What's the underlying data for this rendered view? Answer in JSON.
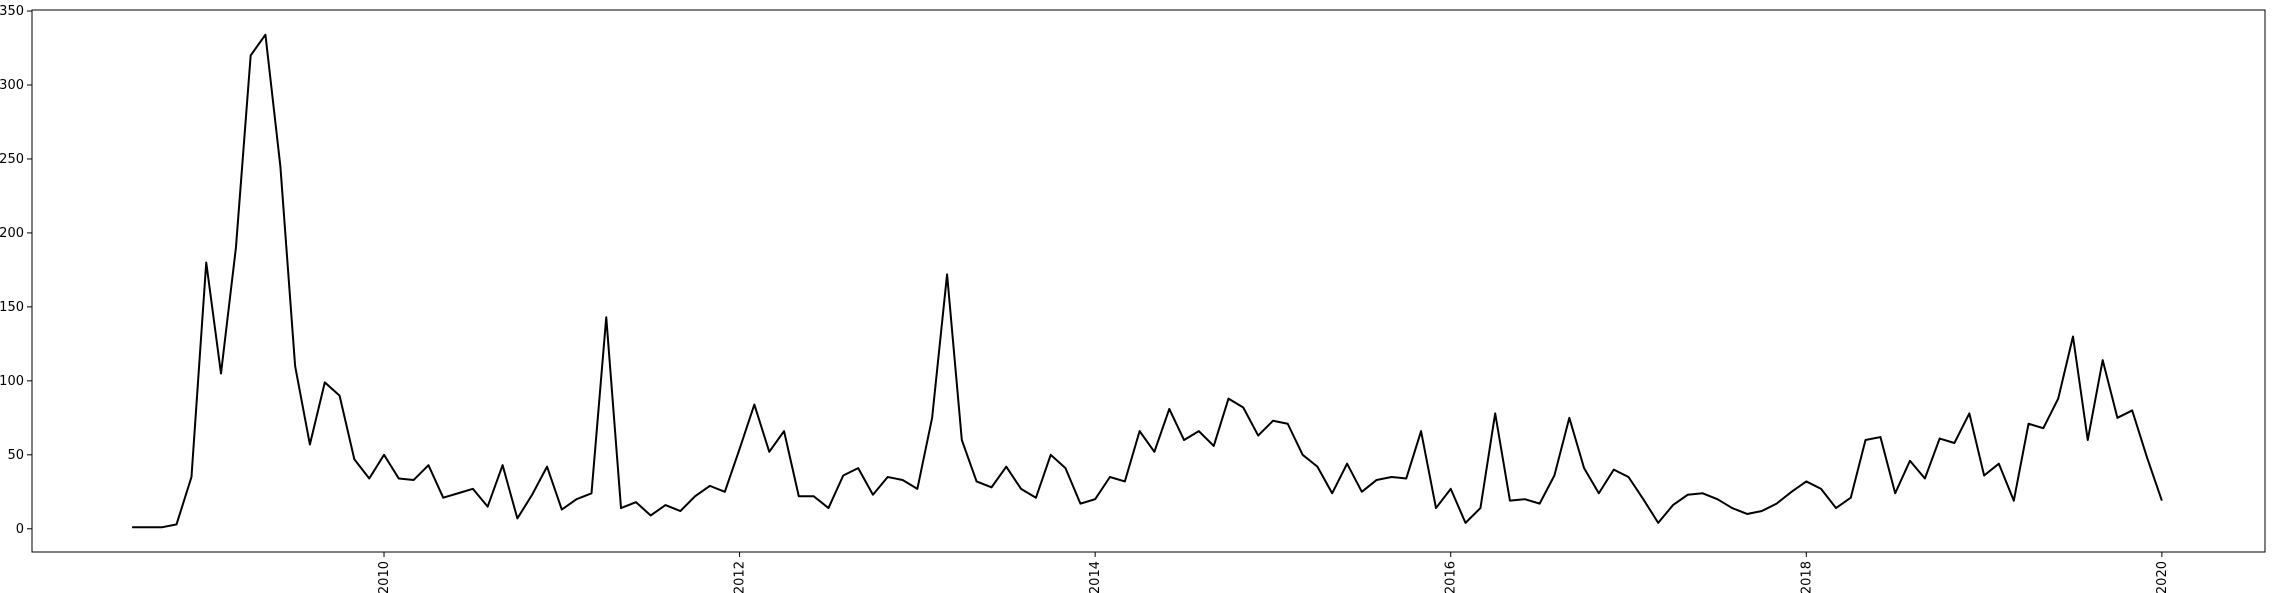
{
  "chart_data": {
    "type": "line",
    "color": "#000000",
    "x": [
      2008.583,
      2008.667,
      2008.75,
      2008.833,
      2008.917,
      2009,
      2009.083,
      2009.167,
      2009.25,
      2009.333,
      2009.417,
      2009.5,
      2009.583,
      2009.667,
      2009.75,
      2009.833,
      2009.917,
      2010,
      2010.083,
      2010.167,
      2010.25,
      2010.333,
      2010.417,
      2010.5,
      2010.583,
      2010.667,
      2010.75,
      2010.833,
      2010.917,
      2011,
      2011.083,
      2011.167,
      2011.25,
      2011.333,
      2011.417,
      2011.5,
      2011.583,
      2011.667,
      2011.75,
      2011.833,
      2011.917,
      2012,
      2012.083,
      2012.167,
      2012.25,
      2012.333,
      2012.417,
      2012.5,
      2012.583,
      2012.667,
      2012.75,
      2012.833,
      2012.917,
      2013,
      2013.083,
      2013.167,
      2013.25,
      2013.333,
      2013.417,
      2013.5,
      2013.583,
      2013.667,
      2013.75,
      2013.833,
      2013.917,
      2014,
      2014.083,
      2014.167,
      2014.25,
      2014.333,
      2014.417,
      2014.5,
      2014.583,
      2014.667,
      2014.75,
      2014.833,
      2014.917,
      2015,
      2015.083,
      2015.167,
      2015.25,
      2015.333,
      2015.417,
      2015.5,
      2015.583,
      2015.667,
      2015.75,
      2015.833,
      2015.917,
      2016,
      2016.083,
      2016.167,
      2016.25,
      2016.333,
      2016.417,
      2016.5,
      2016.583,
      2016.667,
      2016.75,
      2016.833,
      2016.917,
      2017,
      2017.083,
      2017.167,
      2017.25,
      2017.333,
      2017.417,
      2017.5,
      2017.583,
      2017.667,
      2017.75,
      2017.833,
      2017.917,
      2018,
      2018.083,
      2018.167,
      2018.25,
      2018.333,
      2018.417,
      2018.5,
      2018.583,
      2018.667,
      2018.75,
      2018.833,
      2018.917,
      2019,
      2019.083,
      2019.167,
      2019.25,
      2019.333,
      2019.417,
      2019.5,
      2019.583,
      2019.667,
      2019.75,
      2019.833,
      2019.917,
      2020
    ],
    "values": [
      1,
      1,
      1,
      3,
      35,
      180,
      105,
      190,
      320,
      334,
      245,
      110,
      57,
      99,
      90,
      47,
      34,
      50,
      34,
      33,
      43,
      21,
      24,
      27,
      15,
      43,
      7,
      23,
      42,
      13,
      20,
      24,
      143,
      14,
      18,
      9,
      16,
      12,
      22,
      29,
      25,
      54,
      84,
      52,
      66,
      22,
      22,
      14,
      36,
      41,
      23,
      35,
      33,
      27,
      75,
      172,
      60,
      32,
      28,
      42,
      27,
      21,
      50,
      41,
      17,
      20,
      35,
      32,
      66,
      52,
      81,
      60,
      66,
      56,
      88,
      82,
      63,
      73,
      71,
      50,
      42,
      24,
      44,
      25,
      33,
      35,
      34,
      66,
      14,
      27,
      4,
      14,
      78,
      19,
      20,
      17,
      36,
      75,
      41,
      24,
      40,
      35,
      20,
      4,
      16,
      23,
      24,
      20,
      14,
      10,
      12,
      17,
      25,
      32,
      27,
      14,
      21,
      60,
      62,
      24,
      46,
      34,
      61,
      58,
      78,
      36,
      44,
      19,
      71,
      68,
      88,
      130,
      60,
      114,
      75,
      80,
      48,
      19
    ],
    "xlim": [
      2008.02,
      2020.58
    ],
    "xticks": [
      2010,
      2012,
      2014,
      2016,
      2018,
      2020
    ],
    "ylim": [
      -15.7,
      350.7
    ],
    "yticks": [
      0,
      50,
      100,
      150,
      200,
      250,
      300,
      350
    ]
  }
}
